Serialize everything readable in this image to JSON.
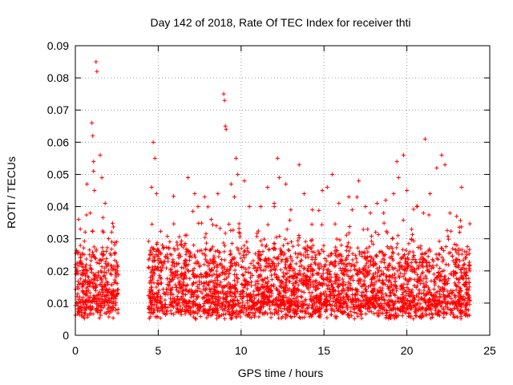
{
  "chart_data": {
    "type": "scatter",
    "title": "Day 142 of 2018, Rate Of TEC Index for receiver thti",
    "xlabel": "GPS time / hours",
    "ylabel": "ROTI / TECUs",
    "xlim": [
      0,
      25
    ],
    "ylim": [
      0,
      0.09
    ],
    "x_ticks": [
      0,
      5,
      10,
      15,
      20,
      25
    ],
    "y_ticks": [
      0,
      0.01,
      0.02,
      0.03,
      0.04,
      0.05,
      0.06,
      0.07,
      0.08,
      0.09
    ],
    "x_tick_labels": [
      "0",
      "5",
      "10",
      "15",
      "20",
      "25"
    ],
    "y_tick_labels": [
      "0",
      "0.01",
      "0.02",
      "0.03",
      "0.04",
      "0.05",
      "0.06",
      "0.07",
      "0.08",
      "0.09"
    ],
    "grid": true,
    "marker": "+",
    "marker_color": "#ff0000",
    "data_gap_hours": [
      2.6,
      4.4
    ],
    "series": [
      {
        "name": "ROTI",
        "points": [
          [
            0.1,
            0.012
          ],
          [
            0.2,
            0.036
          ],
          [
            0.3,
            0.033
          ],
          [
            0.4,
            0.025
          ],
          [
            0.5,
            0.02
          ],
          [
            0.7,
            0.047
          ],
          [
            0.9,
            0.038
          ],
          [
            1.0,
            0.066
          ],
          [
            1.05,
            0.062
          ],
          [
            1.1,
            0.054
          ],
          [
            1.1,
            0.051
          ],
          [
            1.15,
            0.045
          ],
          [
            1.25,
            0.085
          ],
          [
            1.3,
            0.082
          ],
          [
            1.5,
            0.056
          ],
          [
            1.6,
            0.049
          ],
          [
            1.7,
            0.032
          ],
          [
            1.8,
            0.041
          ],
          [
            2.0,
            0.03
          ],
          [
            2.2,
            0.029
          ],
          [
            2.5,
            0.029
          ],
          [
            4.6,
            0.046
          ],
          [
            4.7,
            0.06
          ],
          [
            4.8,
            0.055
          ],
          [
            4.9,
            0.044
          ],
          [
            5.3,
            0.027
          ],
          [
            5.8,
            0.025
          ],
          [
            6.4,
            0.028
          ],
          [
            6.8,
            0.049
          ],
          [
            7.2,
            0.044
          ],
          [
            7.4,
            0.04
          ],
          [
            7.8,
            0.043
          ],
          [
            8.2,
            0.036
          ],
          [
            8.6,
            0.044
          ],
          [
            8.95,
            0.075
          ],
          [
            9.0,
            0.073
          ],
          [
            9.05,
            0.065
          ],
          [
            9.1,
            0.064
          ],
          [
            9.4,
            0.047
          ],
          [
            9.6,
            0.043
          ],
          [
            9.7,
            0.055
          ],
          [
            9.8,
            0.05
          ],
          [
            10.2,
            0.048
          ],
          [
            10.5,
            0.04
          ],
          [
            11.2,
            0.04
          ],
          [
            11.6,
            0.046
          ],
          [
            12.0,
            0.04
          ],
          [
            12.2,
            0.055
          ],
          [
            12.3,
            0.049
          ],
          [
            12.7,
            0.047
          ],
          [
            13.0,
            0.039
          ],
          [
            13.5,
            0.053
          ],
          [
            13.8,
            0.044
          ],
          [
            14.3,
            0.039
          ],
          [
            14.9,
            0.045
          ],
          [
            15.2,
            0.046
          ],
          [
            15.5,
            0.05
          ],
          [
            15.9,
            0.041
          ],
          [
            16.5,
            0.043
          ],
          [
            16.7,
            0.039
          ],
          [
            17.1,
            0.048
          ],
          [
            17.5,
            0.04
          ],
          [
            17.8,
            0.038
          ],
          [
            18.2,
            0.041
          ],
          [
            18.6,
            0.038
          ],
          [
            19.2,
            0.044
          ],
          [
            19.4,
            0.054
          ],
          [
            19.5,
            0.049
          ],
          [
            19.8,
            0.056
          ],
          [
            20.0,
            0.045
          ],
          [
            20.6,
            0.04
          ],
          [
            21.0,
            0.038
          ],
          [
            21.1,
            0.061
          ],
          [
            21.4,
            0.044
          ],
          [
            21.8,
            0.052
          ],
          [
            22.1,
            0.056
          ],
          [
            22.3,
            0.053
          ],
          [
            22.6,
            0.038
          ],
          [
            23.0,
            0.037
          ],
          [
            23.3,
            0.046
          ],
          [
            23.6,
            0.025
          ],
          [
            23.8,
            0.02
          ]
        ]
      }
    ]
  }
}
